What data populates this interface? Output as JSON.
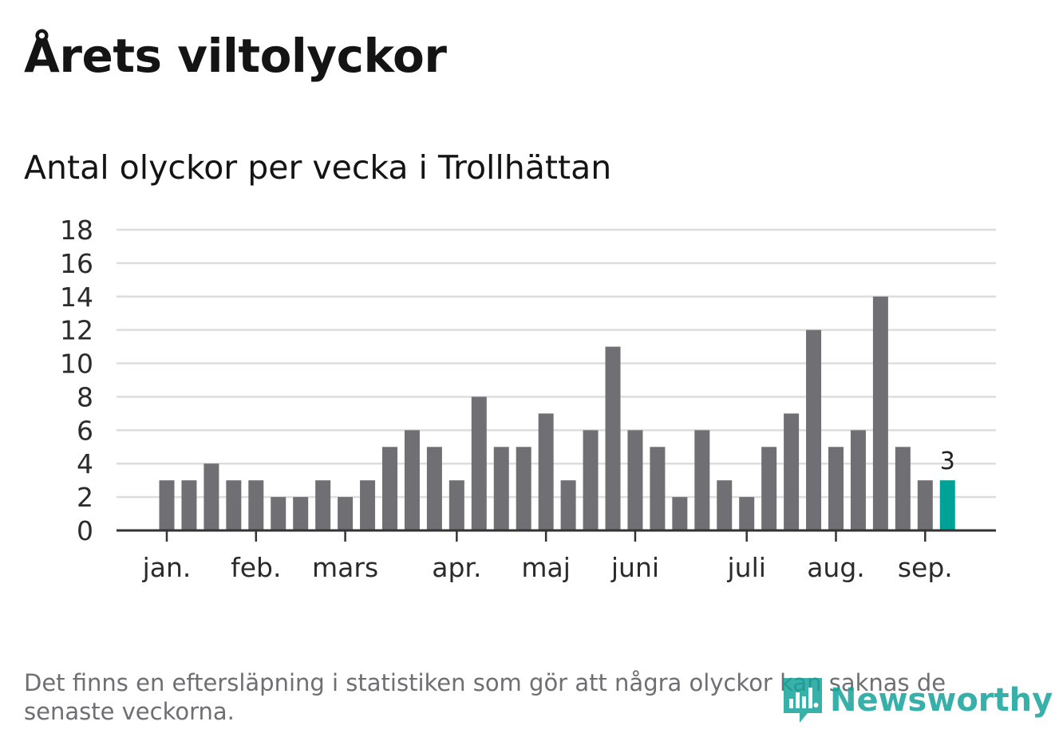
{
  "title": "Årets viltolyckor",
  "subtitle": "Antal olyckor per vecka i Trollhättan",
  "note": "Det finns en eftersläpning i statistiken som gör att några olyckor kan saknas de senaste veckorna.",
  "logo_text": "Newsworthy",
  "colors": {
    "bar": "#707074",
    "highlight": "#00a196",
    "grid": "#dddddd",
    "axis": "#333333",
    "text": "#2b2b2b"
  },
  "chart_data": {
    "type": "bar",
    "xlabel": "",
    "ylabel": "",
    "ylim": [
      0,
      18
    ],
    "yticks": [
      0,
      2,
      4,
      6,
      8,
      10,
      12,
      14,
      16,
      18
    ],
    "month_labels": [
      {
        "label": "jan.",
        "week": 1
      },
      {
        "label": "feb.",
        "week": 5
      },
      {
        "label": "mars",
        "week": 9
      },
      {
        "label": "apr.",
        "week": 14
      },
      {
        "label": "maj",
        "week": 18
      },
      {
        "label": "juni",
        "week": 22
      },
      {
        "label": "juli",
        "week": 27
      },
      {
        "label": "aug.",
        "week": 31
      },
      {
        "label": "sep.",
        "week": 35
      }
    ],
    "weeks": [
      1,
      2,
      3,
      4,
      5,
      6,
      7,
      8,
      9,
      10,
      11,
      12,
      13,
      14,
      15,
      16,
      17,
      18,
      19,
      20,
      21,
      22,
      23,
      24,
      25,
      26,
      27,
      28,
      29,
      30,
      31,
      32,
      33,
      34,
      35,
      36
    ],
    "values": [
      3,
      3,
      4,
      3,
      3,
      2,
      2,
      3,
      2,
      3,
      5,
      6,
      5,
      3,
      8,
      5,
      5,
      7,
      3,
      6,
      11,
      6,
      5,
      2,
      6,
      3,
      2,
      5,
      7,
      12,
      5,
      6,
      14,
      5,
      3,
      3
    ],
    "highlight_index": 35,
    "highlight_label": "3",
    "grid": true
  }
}
